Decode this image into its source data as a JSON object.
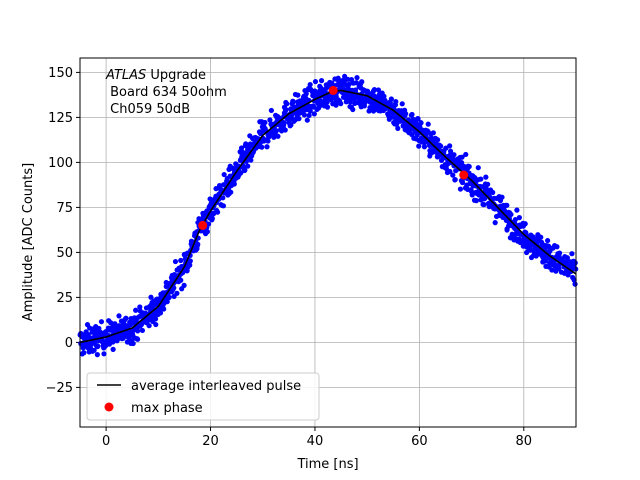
{
  "chart_data": {
    "type": "scatter",
    "title": "",
    "xlabel": "Time [ns]",
    "ylabel": "Amplitude [ADC Counts]",
    "xlim": [
      -5,
      90
    ],
    "ylim": [
      -47,
      158
    ],
    "xticks": [
      0,
      20,
      40,
      60,
      80
    ],
    "yticks": [
      -25,
      0,
      25,
      50,
      75,
      100,
      125,
      150
    ],
    "grid": true,
    "annotation": {
      "line1_italic": "ATLAS",
      "line1_rest": " Upgrade",
      "line2": " Board 634 50ohm",
      "line3": " Ch059 50dB"
    },
    "legend": {
      "position": "lower-left",
      "entries": [
        {
          "label": "average interleaved pulse",
          "color": "#000000",
          "marker": "line"
        },
        {
          "label": "max phase",
          "color": "#ff0000",
          "marker": "circle"
        }
      ]
    },
    "series": [
      {
        "name": "samples",
        "color": "#0000ff",
        "marker": "circle",
        "x_range": [
          -5,
          90
        ],
        "count": 1500,
        "noise": 4,
        "note": "dense scatter of interleaved samples around the average pulse"
      },
      {
        "name": "average interleaved pulse",
        "color": "#000000",
        "marker": "line",
        "x": [
          -5,
          0,
          5,
          10,
          15,
          18,
          20,
          25,
          30,
          35,
          40,
          43,
          45,
          50,
          55,
          60,
          65,
          70,
          75,
          80,
          85,
          90
        ],
        "y": [
          0,
          3,
          8,
          20,
          42,
          63,
          73,
          95,
          115,
          127,
          135,
          139,
          140,
          137,
          129,
          117,
          103,
          90,
          75,
          60,
          48,
          38
        ]
      },
      {
        "name": "max phase",
        "color": "#ff0000",
        "marker": "circle",
        "x": [
          18.5,
          43.5,
          68.5
        ],
        "y": [
          65,
          140,
          93
        ]
      }
    ]
  }
}
